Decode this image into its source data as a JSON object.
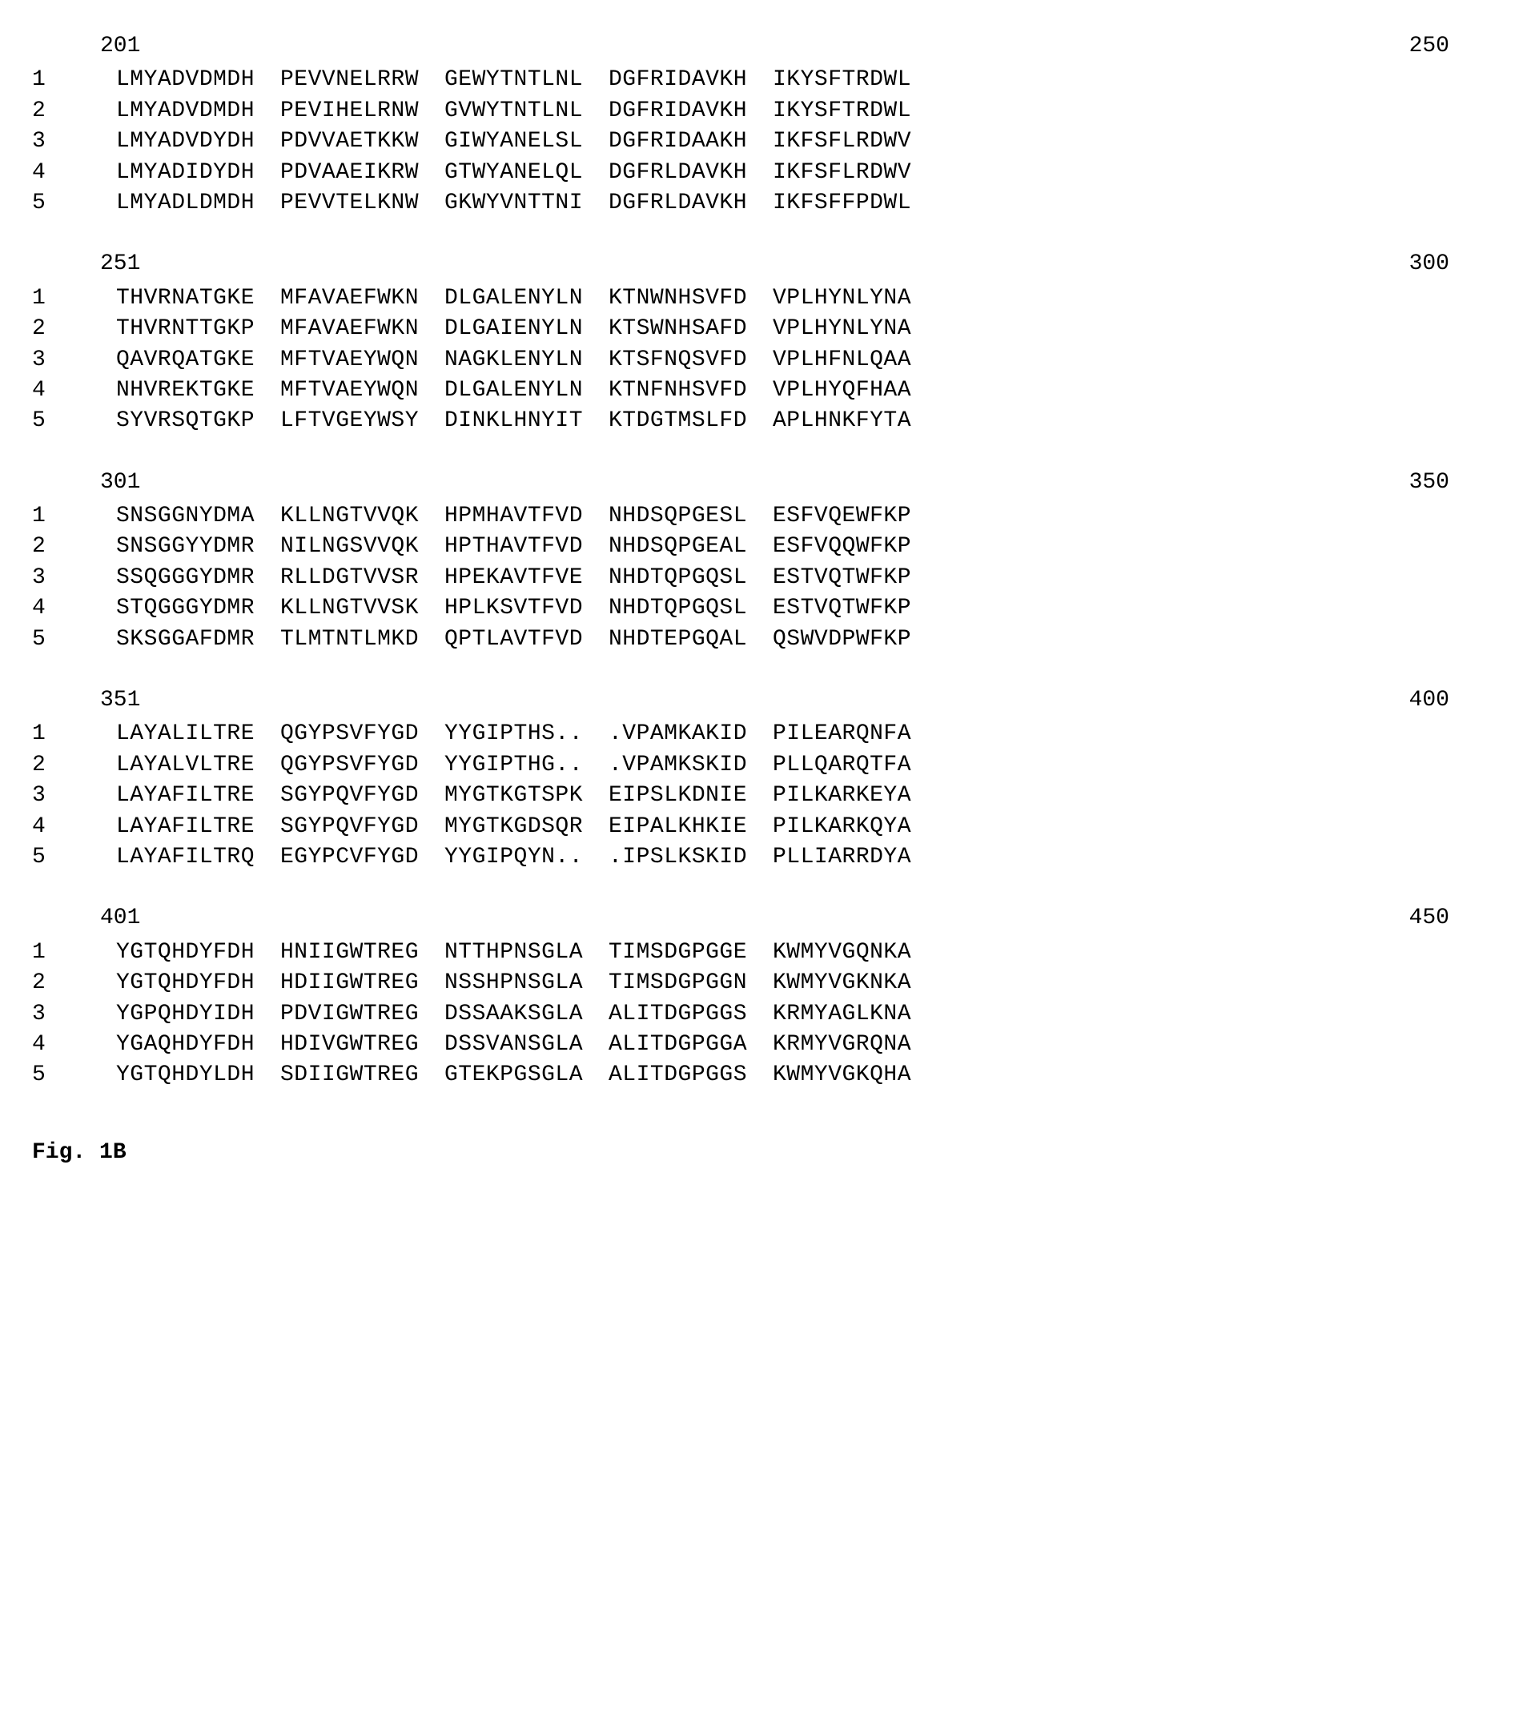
{
  "font": {
    "family": "Courier New",
    "size_pt": 28,
    "color": "#000000"
  },
  "background_color": "#ffffff",
  "figure_label": "Fig. 1B",
  "blocks": [
    {
      "start": "201",
      "end": "250",
      "rows": [
        {
          "label": "1",
          "cols": [
            "LMYADVDMDH",
            "PEVVNELRRW",
            "GEWYTNTLNL",
            "DGFRIDAVKH",
            "IKYSFTRDWL"
          ]
        },
        {
          "label": "2",
          "cols": [
            "LMYADVDMDH",
            "PEVIHELRNW",
            "GVWYTNTLNL",
            "DGFRIDAVKH",
            "IKYSFTRDWL"
          ]
        },
        {
          "label": "3",
          "cols": [
            "LMYADVDYDH",
            "PDVVAETKKW",
            "GIWYANELSL",
            "DGFRIDAAKH",
            "IKFSFLRDWV"
          ]
        },
        {
          "label": "4",
          "cols": [
            "LMYADIDYDH",
            "PDVAAEIKRW",
            "GTWYANELQL",
            "DGFRLDAVKH",
            "IKFSFLRDWV"
          ]
        },
        {
          "label": "5",
          "cols": [
            "LMYADLDMDH",
            "PEVVTELKNW",
            "GKWYVNTTNI",
            "DGFRLDAVKH",
            "IKFSFFPDWL"
          ]
        }
      ]
    },
    {
      "start": "251",
      "end": "300",
      "rows": [
        {
          "label": "1",
          "cols": [
            "THVRNATGKE",
            "MFAVAEFWKN",
            "DLGALENYLN",
            "KTNWNHSVFD",
            "VPLHYNLYNA"
          ]
        },
        {
          "label": "2",
          "cols": [
            "THVRNTTGKP",
            "MFAVAEFWKN",
            "DLGAIENYLN",
            "KTSWNHSAFD",
            "VPLHYNLYNA"
          ]
        },
        {
          "label": "3",
          "cols": [
            "QAVRQATGKE",
            "MFTVAEYWQN",
            "NAGKLENYLN",
            "KTSFNQSVFD",
            "VPLHFNLQAA"
          ]
        },
        {
          "label": "4",
          "cols": [
            "NHVREKTGKE",
            "MFTVAEYWQN",
            "DLGALENYLN",
            "KTNFNHSVFD",
            "VPLHYQFHAA"
          ]
        },
        {
          "label": "5",
          "cols": [
            "SYVRSQTGKP",
            "LFTVGEYWSY",
            "DINKLHNYIT",
            "KTDGTMSLFD",
            "APLHNKFYTA"
          ]
        }
      ]
    },
    {
      "start": "301",
      "end": "350",
      "rows": [
        {
          "label": "1",
          "cols": [
            "SNSGGNYDMA",
            "KLLNGTVVQK",
            "HPMHAVTFVD",
            "NHDSQPGESL",
            "ESFVQEWFKP"
          ]
        },
        {
          "label": "2",
          "cols": [
            "SNSGGYYDMR",
            "NILNGSVVQK",
            "HPTHAVTFVD",
            "NHDSQPGEAL",
            "ESFVQQWFKP"
          ]
        },
        {
          "label": "3",
          "cols": [
            "SSQGGGYDMR",
            "RLLDGTVVSR",
            "HPEKAVTFVE",
            "NHDTQPGQSL",
            "ESTVQTWFKP"
          ]
        },
        {
          "label": "4",
          "cols": [
            "STQGGGYDMR",
            "KLLNGTVVSK",
            "HPLKSVTFVD",
            "NHDTQPGQSL",
            "ESTVQTWFKP"
          ]
        },
        {
          "label": "5",
          "cols": [
            "SKSGGAFDMR",
            "TLMTNTLMKD",
            "QPTLAVTFVD",
            "NHDTEPGQAL",
            "QSWVDPWFKP"
          ]
        }
      ]
    },
    {
      "start": "351",
      "end": "400",
      "rows": [
        {
          "label": "1",
          "cols": [
            "LAYALILTRE",
            "QGYPSVFYGD",
            "YYGIPTHS..",
            ".VPAMKAKID",
            "PILEARQNFA"
          ]
        },
        {
          "label": "2",
          "cols": [
            "LAYALVLTRE",
            "QGYPSVFYGD",
            "YYGIPTHG..",
            ".VPAMKSKID",
            "PLLQARQTFA"
          ]
        },
        {
          "label": "3",
          "cols": [
            "LAYAFILTRE",
            "SGYPQVFYGD",
            "MYGTKGTSPK",
            "EIPSLKDNIE",
            "PILKARKEYA"
          ]
        },
        {
          "label": "4",
          "cols": [
            "LAYAFILTRE",
            "SGYPQVFYGD",
            "MYGTKGDSQR",
            "EIPALKHKIE",
            "PILKARKQYA"
          ]
        },
        {
          "label": "5",
          "cols": [
            "LAYAFILTRQ",
            "EGYPCVFYGD",
            "YYGIPQYN..",
            ".IPSLKSKID",
            "PLLIARRDYA"
          ]
        }
      ]
    },
    {
      "start": "401",
      "end": "450",
      "rows": [
        {
          "label": "1",
          "cols": [
            "YGTQHDYFDH",
            "HNIIGWTREG",
            "NTTHPNSGLA",
            "TIMSDGPGGE",
            "KWMYVGQNKA"
          ]
        },
        {
          "label": "2",
          "cols": [
            "YGTQHDYFDH",
            "HDIIGWTREG",
            "NSSHPNSGLA",
            "TIMSDGPGGN",
            "KWMYVGKNKA"
          ]
        },
        {
          "label": "3",
          "cols": [
            "YGPQHDYIDH",
            "PDVIGWTREG",
            "DSSAAKSGLA",
            "ALITDGPGGS",
            "KRMYAGLKNA"
          ]
        },
        {
          "label": "4",
          "cols": [
            "YGAQHDYFDH",
            "HDIVGWTREG",
            "DSSVANSGLA",
            "ALITDGPGGA",
            "KRMYVGRQNA"
          ]
        },
        {
          "label": "5",
          "cols": [
            "YGTQHDYLDH",
            "SDIIGWTREG",
            "GTEKPGSGLA",
            "ALITDGPGGS",
            "KWMYVGKQHA"
          ]
        }
      ]
    }
  ]
}
